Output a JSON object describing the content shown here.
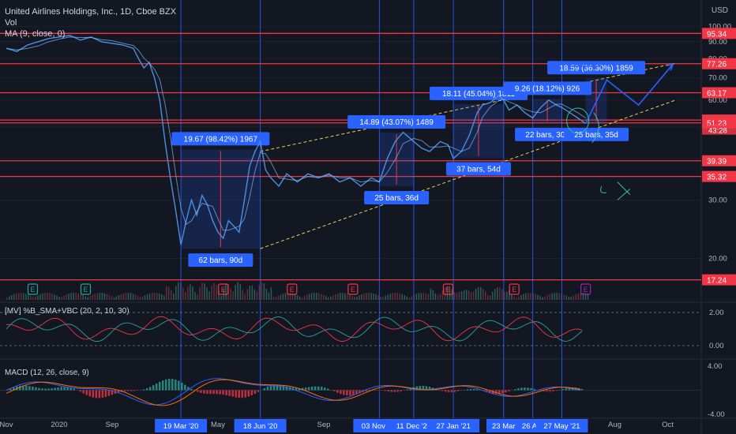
{
  "header": {
    "title": "United Airlines Holdings, Inc., 1D, Cboe BZX",
    "vol": "Vol",
    "ma": "MA (9, close, 0)",
    "currency": "USD"
  },
  "panes": {
    "mv_label": "[MV] %B_SMA+VBC (20, 2, 10, 30)",
    "macd_label": "MACD (12, 26, close, 9)"
  },
  "chart_data": {
    "type": "line",
    "symbol": "UAL",
    "price_axis": {
      "ticks": [
        20.0,
        30.0,
        40.0,
        50.0,
        60.0,
        70.0,
        80.0,
        90.0,
        100.0
      ],
      "ylim": [
        15,
        102
      ]
    },
    "price_levels": [
      {
        "label": "95.34",
        "value": 95.34,
        "highlight": true
      },
      {
        "label": "77.26",
        "value": 77.26,
        "highlight": true
      },
      {
        "label": "63.17",
        "value": 63.17,
        "highlight": true
      },
      {
        "label": "52.25",
        "value": 52.25,
        "highlight": true
      },
      {
        "label": "51.23",
        "value": 51.23,
        "highlight": true
      },
      {
        "label": "39.39",
        "value": 39.39,
        "highlight": true
      },
      {
        "label": "35.32",
        "value": 35.32,
        "highlight": true
      },
      {
        "label": "17.24",
        "value": 17.24,
        "highlight": true
      }
    ],
    "countdown": {
      "label": "43:28",
      "value": 48.8
    },
    "x_axis_labels": [
      "Sep",
      "Nov",
      "2020",
      "May",
      "Sep",
      "Aug",
      "Oct"
    ],
    "x_axis_month_positions": {
      "Sep": 0,
      "Nov": 2,
      "2020": 4,
      "May": 8,
      "Sep2": 12,
      "Aug": 23,
      "Oct": 25
    },
    "highlighted_dates": [
      "19 Mar '20",
      "18 Jun '20",
      "03 Nov '20",
      "11 Dec '20",
      "27 Jan '21",
      "23 Mar",
      "26 Apr",
      "27 May '21"
    ],
    "highlighted_date_positions": [
      6.6,
      9.6,
      14.1,
      15.4,
      16.9,
      18.8,
      19.9,
      21.0
    ],
    "series": [
      {
        "name": "UAL close",
        "points": [
          [
            0.0,
            86
          ],
          [
            0.4,
            84
          ],
          [
            0.8,
            88
          ],
          [
            1.2,
            90
          ],
          [
            1.6,
            92
          ],
          [
            2.0,
            93
          ],
          [
            2.4,
            94
          ],
          [
            2.8,
            91
          ],
          [
            3.2,
            93
          ],
          [
            3.6,
            90
          ],
          [
            4.0,
            89
          ],
          [
            4.4,
            88
          ],
          [
            4.8,
            86
          ],
          [
            5.0,
            80
          ],
          [
            5.2,
            75
          ],
          [
            5.4,
            78
          ],
          [
            5.6,
            70
          ],
          [
            5.8,
            60
          ],
          [
            6.0,
            45
          ],
          [
            6.2,
            35
          ],
          [
            6.4,
            28
          ],
          [
            6.6,
            22
          ],
          [
            6.8,
            26
          ],
          [
            7.0,
            30
          ],
          [
            7.2,
            27
          ],
          [
            7.4,
            31
          ],
          [
            7.6,
            29
          ],
          [
            7.8,
            26
          ],
          [
            8.0,
            24
          ],
          [
            8.2,
            23
          ],
          [
            8.4,
            26
          ],
          [
            8.6,
            25
          ],
          [
            8.8,
            24
          ],
          [
            9.0,
            30
          ],
          [
            9.2,
            38
          ],
          [
            9.4,
            42
          ],
          [
            9.6,
            45
          ],
          [
            9.8,
            37
          ],
          [
            10.0,
            35
          ],
          [
            10.3,
            33
          ],
          [
            10.6,
            36
          ],
          [
            11.0,
            34
          ],
          [
            11.4,
            36
          ],
          [
            11.8,
            35
          ],
          [
            12.2,
            36
          ],
          [
            12.6,
            34
          ],
          [
            13.0,
            35
          ],
          [
            13.4,
            33
          ],
          [
            13.8,
            35
          ],
          [
            14.1,
            34
          ],
          [
            14.4,
            40
          ],
          [
            14.7,
            45
          ],
          [
            15.0,
            48
          ],
          [
            15.4,
            45
          ],
          [
            15.7,
            43
          ],
          [
            16.0,
            42
          ],
          [
            16.4,
            45
          ],
          [
            16.7,
            44
          ],
          [
            16.9,
            40
          ],
          [
            17.2,
            42
          ],
          [
            17.5,
            47
          ],
          [
            17.8,
            55
          ],
          [
            18.0,
            58
          ],
          [
            18.3,
            59
          ],
          [
            18.6,
            62
          ],
          [
            18.8,
            60
          ],
          [
            19.0,
            56
          ],
          [
            19.3,
            58
          ],
          [
            19.6,
            55
          ],
          [
            19.9,
            53
          ],
          [
            20.2,
            57
          ],
          [
            20.5,
            60
          ],
          [
            20.8,
            58
          ],
          [
            21.0,
            57
          ],
          [
            21.3,
            55
          ],
          [
            21.6,
            53
          ],
          [
            21.9,
            51
          ]
        ]
      }
    ],
    "projection": [
      [
        21.9,
        51
      ],
      [
        22.7,
        69
      ],
      [
        23.9,
        58
      ],
      [
        25.2,
        77
      ]
    ],
    "measure_boxes": [
      {
        "from": [
          6.6,
          21.4
        ],
        "to": [
          9.6,
          42.6
        ],
        "label": "19.67 (98.42%) 1967",
        "range_label": "62 bars, 90d"
      },
      {
        "from": [
          14.1,
          33.0
        ],
        "to": [
          15.4,
          47.9
        ],
        "label": "14.89 (43.07%) 1489",
        "range_label": "25 bars, 36d"
      },
      {
        "from": [
          16.9,
          40.3
        ],
        "to": [
          18.8,
          58.4
        ],
        "label": "18.11 (45.04%) 1811",
        "range_label": "37 bars, 54d"
      },
      {
        "from": [
          19.9,
          51.2
        ],
        "to": [
          21.0,
          60.5
        ],
        "label": "9.26 (18.12%) 926",
        "range_label": "22 bars, 30d"
      },
      {
        "from": [
          21.9,
          51.2
        ],
        "to": [
          22.7,
          69.8
        ],
        "label": "18.59 (36.30%) 1859",
        "range_label": "25 bars, 35d"
      }
    ],
    "earnings_markers": {
      "positions": [
        1.0,
        3.0,
        8.2,
        10.8,
        13.1,
        16.7,
        19.2,
        21.9
      ],
      "label": "E"
    },
    "mv_axis": {
      "ticks": [
        "2.00",
        "0.00"
      ],
      "values": [
        2.0,
        0.0
      ]
    },
    "macd_axis": {
      "ticks": [
        "4.00",
        "-4.00"
      ],
      "values": [
        4.0,
        -4.0
      ]
    }
  }
}
